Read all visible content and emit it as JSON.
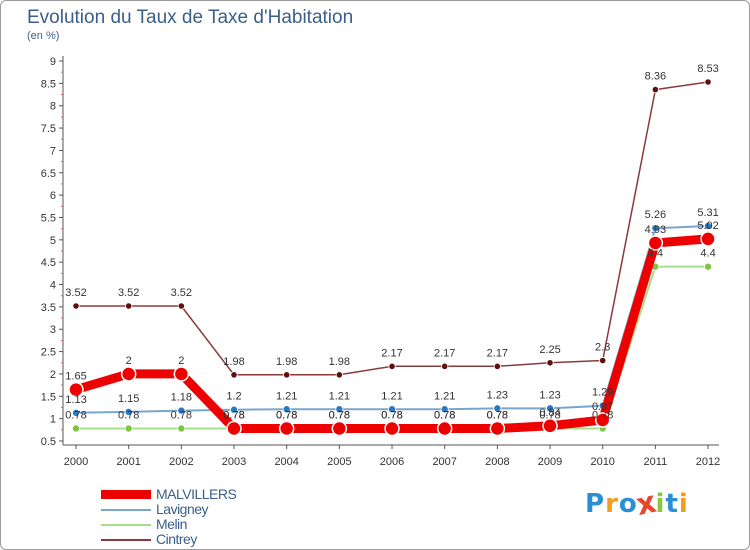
{
  "chart_data": {
    "type": "line",
    "title": "Evolution du Taux de Taxe d'Habitation",
    "subtitle": "(en %)",
    "xlabel": "",
    "ylabel": "",
    "categories": [
      "2000",
      "2001",
      "2002",
      "2003",
      "2004",
      "2005",
      "2006",
      "2007",
      "2008",
      "2009",
      "2010",
      "2011",
      "2012"
    ],
    "ylim": [
      0.5,
      9
    ],
    "yticks": [
      "0.5",
      "1",
      "1.5",
      "2",
      "2.5",
      "3",
      "3.5",
      "4",
      "4.5",
      "5",
      "5.5",
      "6",
      "6.5",
      "7",
      "7.5",
      "8",
      "8.5",
      "9"
    ],
    "grid": false,
    "legend_position": "bottom-left",
    "series": [
      {
        "name": "MALVILLERS",
        "color": "#ee0000",
        "marker_color": "#ee0000",
        "values": [
          1.65,
          2,
          2,
          0.78,
          0.78,
          0.78,
          0.78,
          0.78,
          0.78,
          0.84,
          0.97,
          4.93,
          5.02
        ],
        "labels": [
          "1.65",
          "2",
          "2",
          "0.78",
          "0.78",
          "0.78",
          "0.78",
          "0.78",
          "0.78",
          "0.84",
          "0.97",
          "4.93",
          "5.02"
        ]
      },
      {
        "name": "Lavigney",
        "color": "#7aa5cc",
        "marker_color": "#2b78bd",
        "values": [
          1.13,
          1.15,
          1.18,
          1.2,
          1.21,
          1.21,
          1.21,
          1.21,
          1.23,
          1.23,
          1.29,
          5.26,
          5.31
        ],
        "labels": [
          "1.13",
          "1.15",
          "1.18",
          "1.2",
          "1.21",
          "1.21",
          "1.21",
          "1.21",
          "1.23",
          "1.23",
          "1.29",
          "5.26",
          "5.31"
        ]
      },
      {
        "name": "Melin",
        "color": "#a6df8a",
        "marker_color": "#7ec63f",
        "values": [
          0.78,
          0.78,
          0.78,
          0.78,
          0.78,
          0.78,
          0.78,
          0.78,
          0.78,
          0.78,
          0.78,
          4.4,
          4.4
        ],
        "labels": [
          "0.78",
          "0.78",
          "0.78",
          "0.78",
          "0.78",
          "0.78",
          "0.78",
          "0.78",
          "0.78",
          "0.78",
          "0.78",
          "4.4",
          "4.4"
        ]
      },
      {
        "name": "Cintrey",
        "color": "#8a3a3a",
        "marker_color": "#5e1010",
        "values": [
          3.52,
          3.52,
          3.52,
          1.98,
          1.98,
          1.98,
          2.17,
          2.17,
          2.17,
          2.25,
          2.3,
          8.36,
          8.53
        ],
        "labels": [
          "3.52",
          "3.52",
          "3.52",
          "1.98",
          "1.98",
          "1.98",
          "2.17",
          "2.17",
          "2.17",
          "2.25",
          "2.3",
          "8.36",
          "8.53"
        ]
      }
    ]
  },
  "legend": {
    "items": [
      {
        "label": "MALVILLERS",
        "color": "#ee0000"
      },
      {
        "label": "Lavigney",
        "color": "#7aa5cc"
      },
      {
        "label": "Melin",
        "color": "#a6df8a"
      },
      {
        "label": "Cintrey",
        "color": "#8a3a3a"
      }
    ]
  },
  "logo": {
    "text": "Proxiti",
    "letters": [
      {
        "ch": "P",
        "color": "#2b8fd6"
      },
      {
        "ch": "r",
        "color": "#f39c1e"
      },
      {
        "ch": "o",
        "color": "#2b8fd6"
      },
      {
        "ch": "x",
        "color": "#e8452c"
      },
      {
        "ch": "i",
        "color": "#8cc63f"
      },
      {
        "ch": "t",
        "color": "#2b8fd6"
      },
      {
        "ch": "i",
        "color": "#f39c1e"
      }
    ]
  }
}
